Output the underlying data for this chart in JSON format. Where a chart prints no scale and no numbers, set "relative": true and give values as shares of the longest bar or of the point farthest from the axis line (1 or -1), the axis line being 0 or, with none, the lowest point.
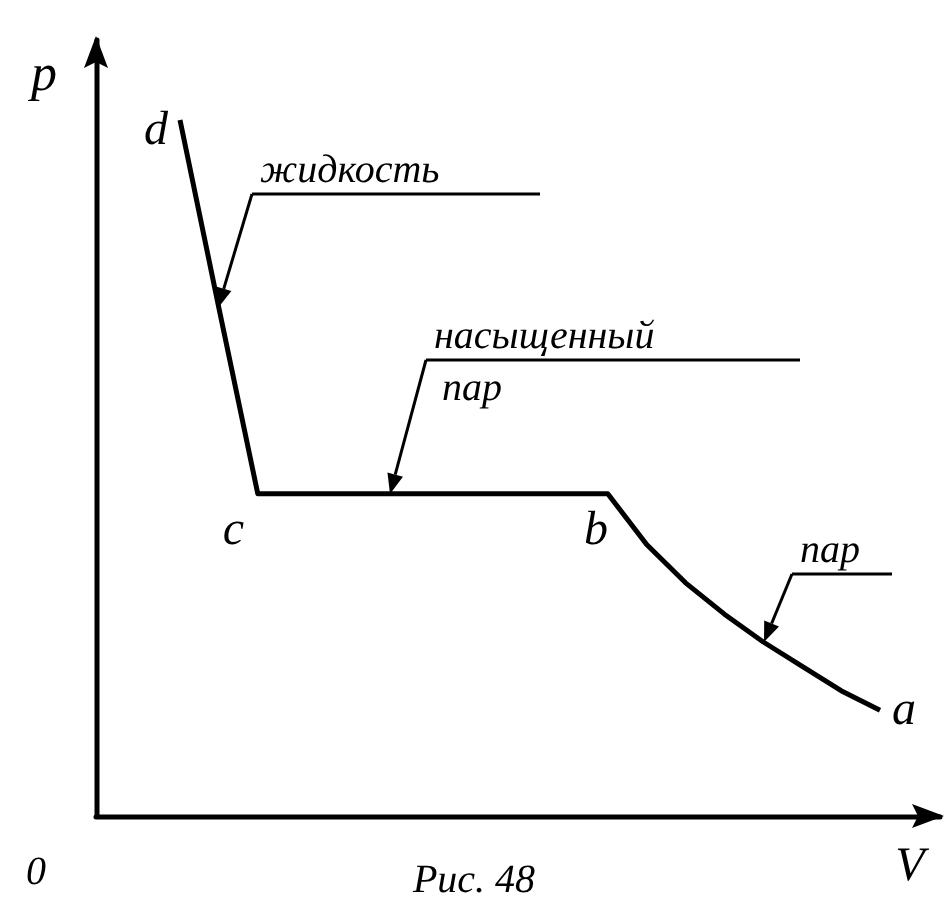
{
  "chart_data": {
    "type": "line",
    "relative": true,
    "xlabel": "V",
    "ylabel": "p",
    "color": "#000000",
    "marker": "none",
    "line_style": "solid",
    "grid": false,
    "categories": [
      null,
      null,
      null,
      null,
      null,
      null,
      null,
      null,
      null,
      null,
      null,
      null,
      null,
      null,
      null,
      null,
      null,
      null,
      null
    ],
    "values": [
      1.0,
      0.73,
      0.463,
      0.463,
      0.463,
      0.463,
      0.463,
      0.463,
      0.463,
      0.463,
      0.463,
      0.463,
      0.39,
      0.335,
      0.29,
      0.25,
      0.215,
      0.18,
      0.152
    ],
    "annotations": [
      "0",
      "d",
      "c",
      "b",
      "a",
      "жидкость",
      "насыщенный пар",
      "пар",
      "Рис. 48"
    ]
  }
}
